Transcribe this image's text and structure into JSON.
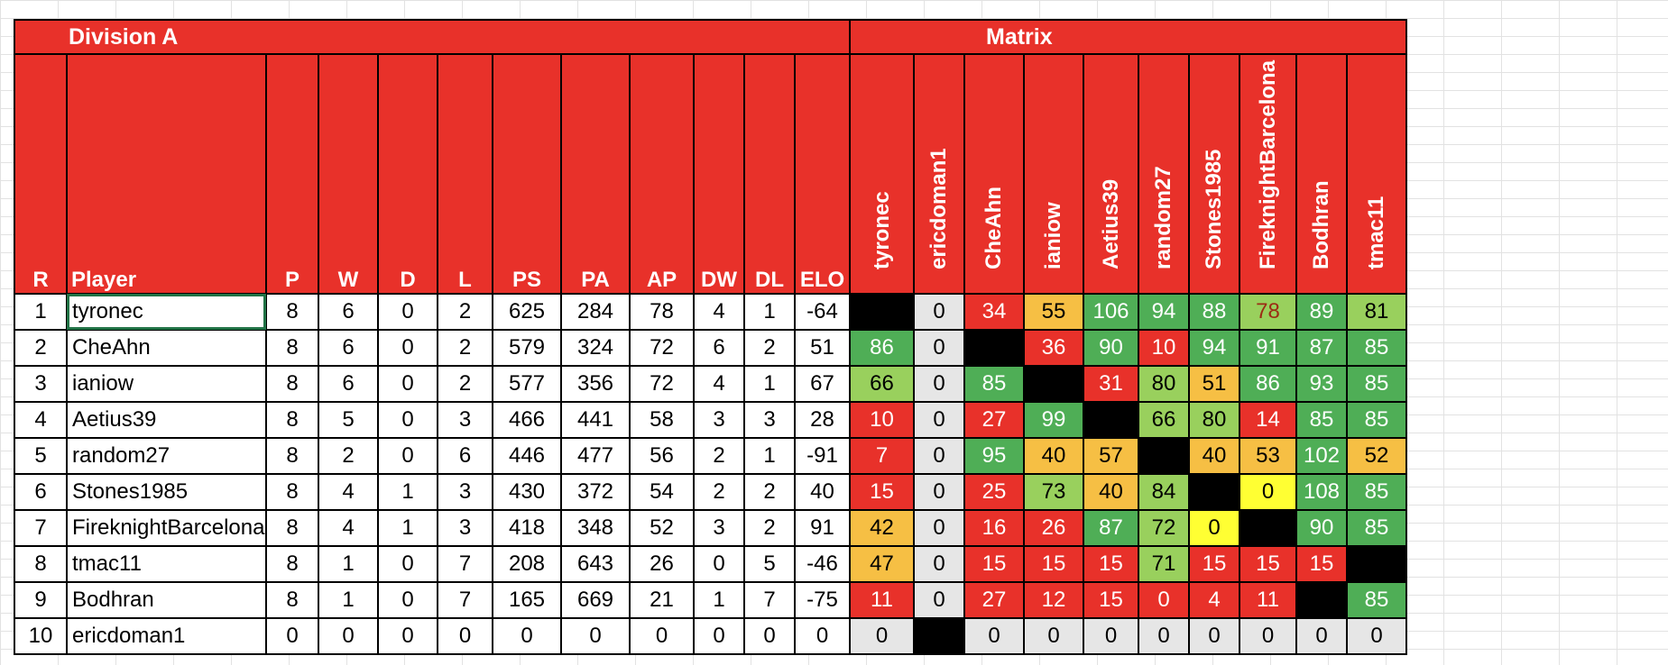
{
  "header": {
    "division_title": "Division A",
    "matrix_title": "Matrix"
  },
  "columns": {
    "rank": "R",
    "player": "Player",
    "stats": [
      "P",
      "W",
      "D",
      "L",
      "PS",
      "PA",
      "AP",
      "DW",
      "DL",
      "ELO"
    ]
  },
  "matrix_columns": [
    "tyronec",
    "ericdoman1",
    "CheAhn",
    "ianiow",
    "Aetius39",
    "random27",
    "Stones1985",
    "FireknightBarcelona",
    "Bodhran",
    "tmac11"
  ],
  "colors": {
    "header_red": "#e8312a",
    "black": "#000000",
    "gray": "#e6e6e6",
    "red": "#e8312a",
    "orange": "#f6bf44",
    "light_green": "#99d05d",
    "green": "#4fae56",
    "yellow": "#ffff33",
    "selection": "#217346"
  },
  "rows": [
    {
      "rank": "1",
      "player": "tyronec",
      "stats": [
        "8",
        "6",
        "0",
        "2",
        "625",
        "284",
        "78",
        "4",
        "1",
        "-64"
      ],
      "matrix": [
        [
          "",
          "black"
        ],
        [
          "0",
          "gray"
        ],
        [
          "34",
          "red"
        ],
        [
          "55",
          "orange"
        ],
        [
          "106",
          "green"
        ],
        [
          "94",
          "green"
        ],
        [
          "88",
          "green"
        ],
        [
          "78",
          "olive"
        ],
        [
          "89",
          "green"
        ],
        [
          "81",
          "lgreen"
        ]
      ]
    },
    {
      "rank": "2",
      "player": "CheAhn",
      "stats": [
        "8",
        "6",
        "0",
        "2",
        "579",
        "324",
        "72",
        "6",
        "2",
        "51"
      ],
      "matrix": [
        [
          "86",
          "green"
        ],
        [
          "0",
          "gray"
        ],
        [
          "",
          "black"
        ],
        [
          "36",
          "red"
        ],
        [
          "90",
          "green"
        ],
        [
          "10",
          "red"
        ],
        [
          "94",
          "green"
        ],
        [
          "91",
          "green"
        ],
        [
          "87",
          "green"
        ],
        [
          "85",
          "green"
        ]
      ]
    },
    {
      "rank": "3",
      "player": "ianiow",
      "stats": [
        "8",
        "6",
        "0",
        "2",
        "577",
        "356",
        "72",
        "4",
        "1",
        "67"
      ],
      "matrix": [
        [
          "66",
          "lgreen"
        ],
        [
          "0",
          "gray"
        ],
        [
          "85",
          "green"
        ],
        [
          "",
          "black"
        ],
        [
          "31",
          "red"
        ],
        [
          "80",
          "lgreen"
        ],
        [
          "51",
          "orange"
        ],
        [
          "86",
          "green"
        ],
        [
          "93",
          "green"
        ],
        [
          "85",
          "green"
        ]
      ]
    },
    {
      "rank": "4",
      "player": "Aetius39",
      "stats": [
        "8",
        "5",
        "0",
        "3",
        "466",
        "441",
        "58",
        "3",
        "3",
        "28"
      ],
      "matrix": [
        [
          "10",
          "red"
        ],
        [
          "0",
          "gray"
        ],
        [
          "27",
          "red"
        ],
        [
          "99",
          "green"
        ],
        [
          "",
          "black"
        ],
        [
          "66",
          "lgreen"
        ],
        [
          "80",
          "lgreen"
        ],
        [
          "14",
          "red"
        ],
        [
          "85",
          "green"
        ],
        [
          "85",
          "green"
        ]
      ]
    },
    {
      "rank": "5",
      "player": "random27",
      "stats": [
        "8",
        "2",
        "0",
        "6",
        "446",
        "477",
        "56",
        "2",
        "1",
        "-91"
      ],
      "matrix": [
        [
          "7",
          "red"
        ],
        [
          "0",
          "gray"
        ],
        [
          "95",
          "green"
        ],
        [
          "40",
          "orange"
        ],
        [
          "57",
          "orange"
        ],
        [
          "",
          "black"
        ],
        [
          "40",
          "orange"
        ],
        [
          "53",
          "orange"
        ],
        [
          "102",
          "green"
        ],
        [
          "52",
          "orange"
        ]
      ]
    },
    {
      "rank": "6",
      "player": "Stones1985",
      "stats": [
        "8",
        "4",
        "1",
        "3",
        "430",
        "372",
        "54",
        "2",
        "2",
        "40"
      ],
      "matrix": [
        [
          "15",
          "red"
        ],
        [
          "0",
          "gray"
        ],
        [
          "25",
          "red"
        ],
        [
          "73",
          "lgreen"
        ],
        [
          "40",
          "orange"
        ],
        [
          "84",
          "lgreen"
        ],
        [
          "",
          "black"
        ],
        [
          "0",
          "yellow"
        ],
        [
          "108",
          "green"
        ],
        [
          "85",
          "green"
        ]
      ]
    },
    {
      "rank": "7",
      "player": "FireknightBarcelona",
      "stats": [
        "8",
        "4",
        "1",
        "3",
        "418",
        "348",
        "52",
        "3",
        "2",
        "91"
      ],
      "matrix": [
        [
          "42",
          "orange"
        ],
        [
          "0",
          "gray"
        ],
        [
          "16",
          "red"
        ],
        [
          "26",
          "red"
        ],
        [
          "87",
          "green"
        ],
        [
          "72",
          "lgreen"
        ],
        [
          "0",
          "yellow"
        ],
        [
          "",
          "black"
        ],
        [
          "90",
          "green"
        ],
        [
          "85",
          "green"
        ]
      ]
    },
    {
      "rank": "8",
      "player": "tmac11",
      "stats": [
        "8",
        "1",
        "0",
        "7",
        "208",
        "643",
        "26",
        "0",
        "5",
        "-46"
      ],
      "matrix": [
        [
          "47",
          "orange"
        ],
        [
          "0",
          "gray"
        ],
        [
          "15",
          "red"
        ],
        [
          "15",
          "red"
        ],
        [
          "15",
          "red"
        ],
        [
          "71",
          "lgreen"
        ],
        [
          "15",
          "red"
        ],
        [
          "15",
          "red"
        ],
        [
          "15",
          "red"
        ],
        [
          "",
          "black"
        ]
      ]
    },
    {
      "rank": "9",
      "player": "Bodhran",
      "stats": [
        "8",
        "1",
        "0",
        "7",
        "165",
        "669",
        "21",
        "1",
        "7",
        "-75"
      ],
      "matrix": [
        [
          "11",
          "red"
        ],
        [
          "0",
          "gray"
        ],
        [
          "27",
          "red"
        ],
        [
          "12",
          "red"
        ],
        [
          "15",
          "red"
        ],
        [
          "0",
          "red"
        ],
        [
          "4",
          "red"
        ],
        [
          "11",
          "red"
        ],
        [
          "",
          "black"
        ],
        [
          "85",
          "green"
        ]
      ]
    },
    {
      "rank": "10",
      "player": "ericdoman1",
      "stats": [
        "0",
        "0",
        "0",
        "0",
        "0",
        "0",
        "0",
        "0",
        "0",
        "0"
      ],
      "matrix": [
        [
          "0",
          "gray"
        ],
        [
          "",
          "black"
        ],
        [
          "0",
          "gray"
        ],
        [
          "0",
          "gray"
        ],
        [
          "0",
          "gray"
        ],
        [
          "0",
          "gray"
        ],
        [
          "0",
          "gray"
        ],
        [
          "0",
          "gray"
        ],
        [
          "0",
          "gray"
        ],
        [
          "0",
          "gray"
        ]
      ]
    }
  ]
}
